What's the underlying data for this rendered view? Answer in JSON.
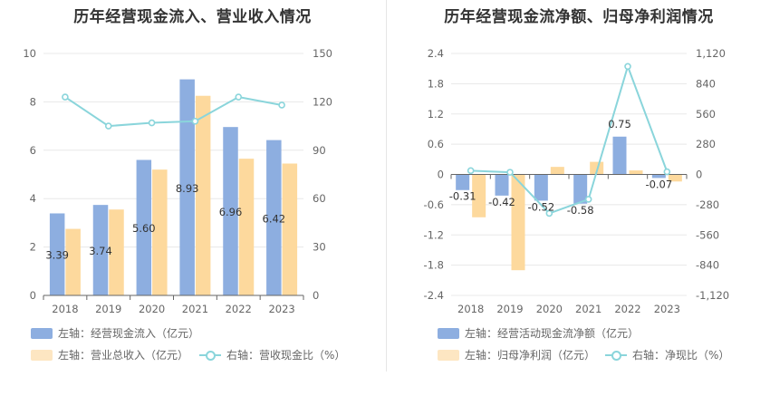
{
  "chart_data": [
    {
      "type": "bar",
      "title": "历年经营现金流入、营业收入情况",
      "categories": [
        "2018",
        "2019",
        "2020",
        "2021",
        "2022",
        "2023"
      ],
      "ylim": [
        0,
        10
      ],
      "yticks": [
        0,
        2,
        4,
        6,
        8,
        10
      ],
      "y2lim": [
        0,
        150
      ],
      "y2ticks": [
        0,
        30,
        60,
        90,
        120,
        150
      ],
      "grid": true,
      "legend_position": "bottom-left",
      "series": [
        {
          "name": "左轴：经营现金流入（亿元）",
          "kind": "bar",
          "axis": "left",
          "color": "#8daee0",
          "values": [
            3.39,
            3.74,
            5.6,
            8.93,
            6.96,
            6.42
          ],
          "labels": [
            "3.39",
            "3.74",
            "5.60",
            "8.93",
            "6.96",
            "6.42"
          ]
        },
        {
          "name": "左轴：营业总收入（亿元）",
          "kind": "bar",
          "axis": "left",
          "color": "#fdd99d",
          "values": [
            2.75,
            3.55,
            5.2,
            8.25,
            5.65,
            5.45
          ]
        },
        {
          "name": "右轴：营收现金比（%）",
          "kind": "line",
          "axis": "right",
          "color": "#8ad5db",
          "values": [
            123,
            105,
            107,
            108,
            123,
            118
          ]
        }
      ]
    },
    {
      "type": "bar",
      "title": "历年经营现金流净额、归母净利润情况",
      "categories": [
        "2018",
        "2019",
        "2020",
        "2021",
        "2022",
        "2023"
      ],
      "ylim": [
        -2.4,
        2.4
      ],
      "yticks": [
        -2.4,
        -1.8,
        -1.2,
        -0.6,
        0,
        0.6,
        1.2,
        1.8,
        2.4
      ],
      "ytick_labels": [
        "-2.4",
        "-1.8",
        "-1.2",
        "-0.6",
        "0",
        "0.6",
        "1.2",
        "1.8",
        "2.4"
      ],
      "y2lim": [
        -1120,
        1120
      ],
      "y2ticks": [
        -1120,
        -840,
        -560,
        -280,
        0,
        280,
        560,
        840,
        1120
      ],
      "y2tick_labels": [
        "-1,120",
        "-840",
        "-560",
        "-280",
        "0",
        "280",
        "560",
        "840",
        "1,120"
      ],
      "grid": true,
      "legend_position": "bottom-left",
      "series": [
        {
          "name": "左轴：经营活动现金流净额（亿元）",
          "kind": "bar",
          "axis": "left",
          "color": "#8daee0",
          "values": [
            -0.31,
            -0.42,
            -0.52,
            -0.58,
            0.75,
            -0.07
          ],
          "labels": [
            "-0.31",
            "-0.42",
            "-0.52",
            "-0.58",
            "0.75",
            "-0.07"
          ]
        },
        {
          "name": "左轴：归母净利润（亿元）",
          "kind": "bar",
          "axis": "left",
          "color": "#fdd99d",
          "values": [
            -0.85,
            -1.9,
            0.15,
            0.25,
            0.08,
            -0.14
          ]
        },
        {
          "name": "右轴：净现比（%）",
          "kind": "line",
          "axis": "right",
          "color": "#8ad5db",
          "values": [
            35,
            20,
            -360,
            -230,
            1000,
            25
          ]
        }
      ]
    }
  ]
}
